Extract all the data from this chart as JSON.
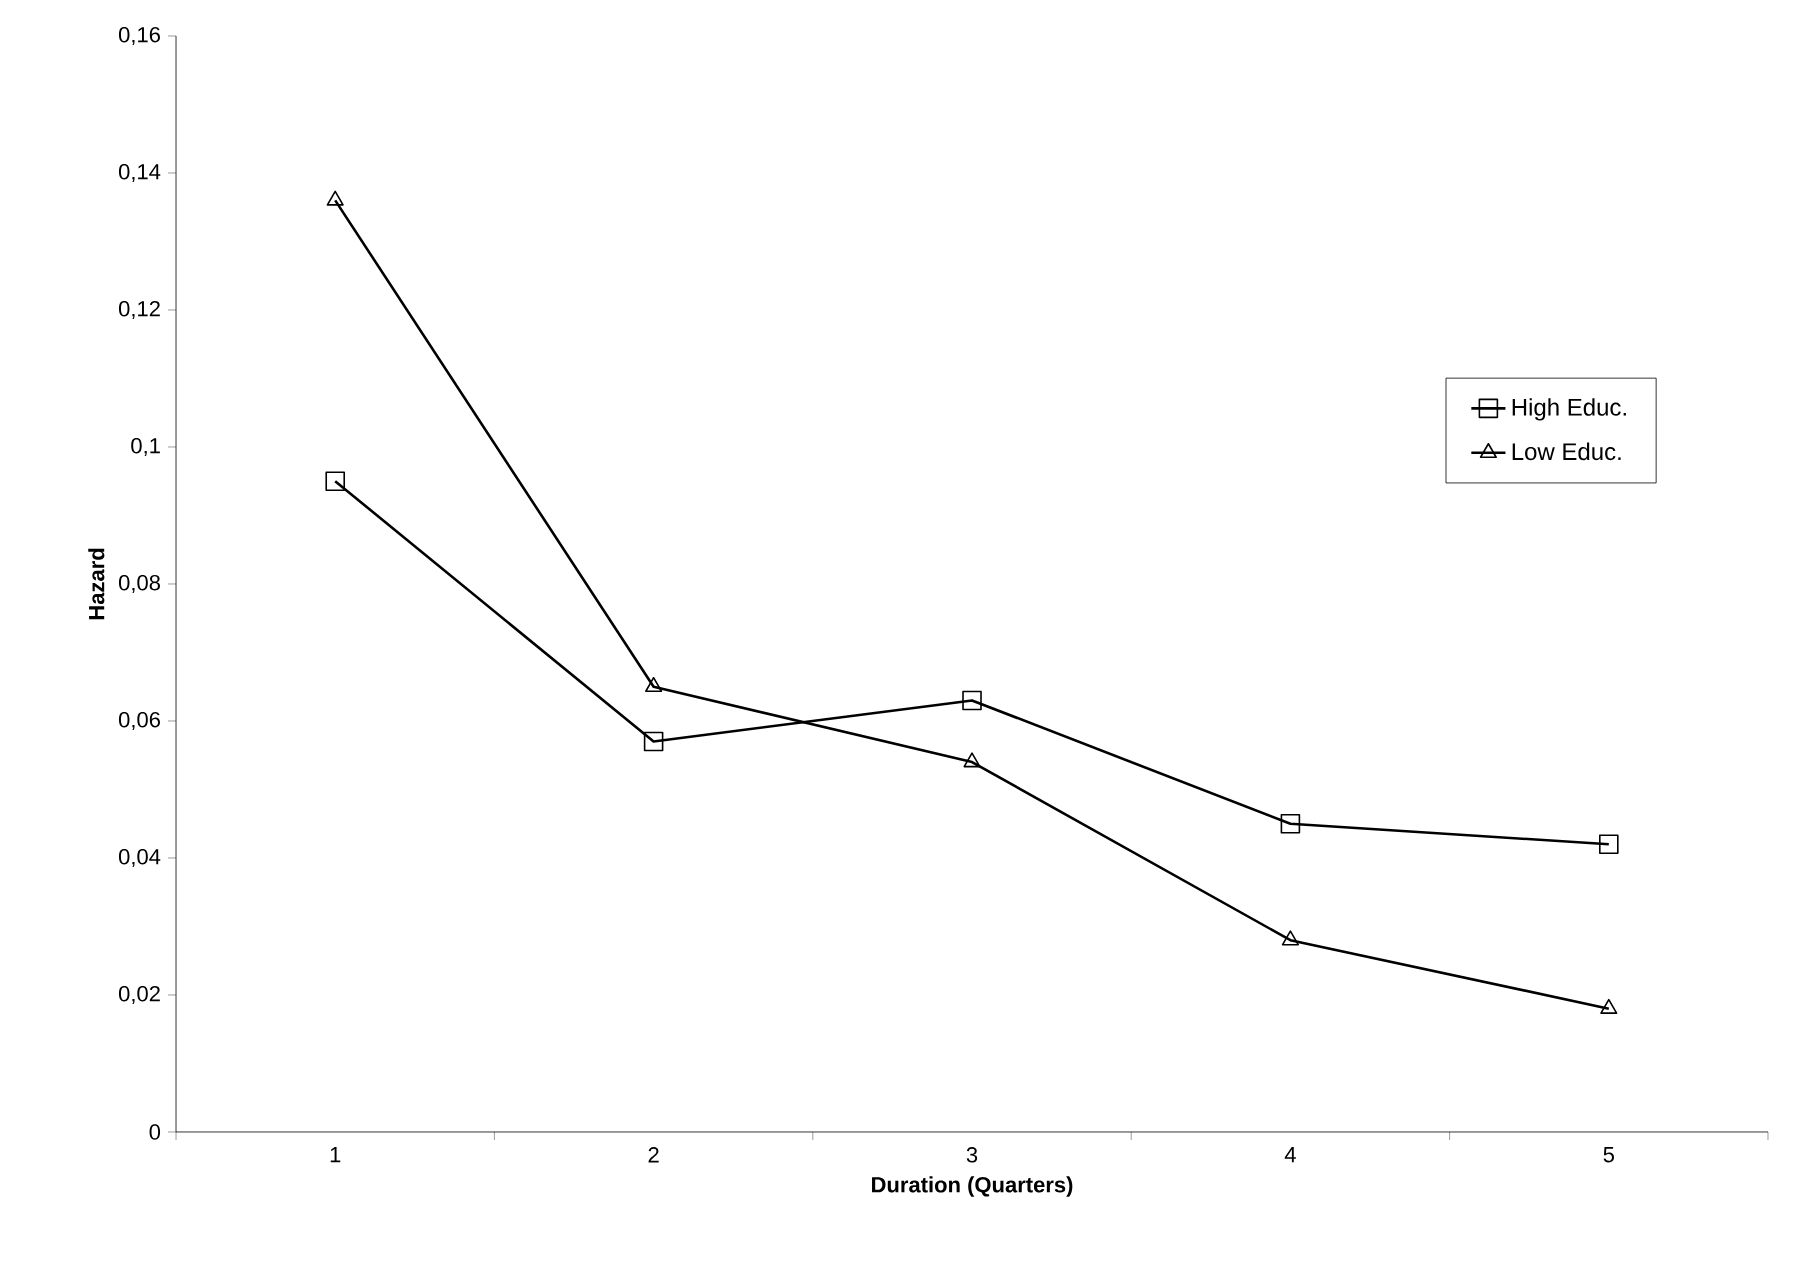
{
  "chart_data": {
    "type": "line",
    "xlabel": "Duration (Quarters)",
    "ylabel": "Hazard",
    "categories": [
      "1",
      "2",
      "3",
      "4",
      "5"
    ],
    "series": [
      {
        "name": "High Educ.",
        "color": "#000000",
        "marker": "square",
        "values": [
          0.095,
          0.057,
          0.063,
          0.045,
          0.042
        ]
      },
      {
        "name": "Low Educ.",
        "color": "#000000",
        "marker": "triangle",
        "values": [
          0.136,
          0.065,
          0.054,
          0.028,
          0.018
        ]
      }
    ],
    "ylim": [
      0,
      0.16
    ],
    "yticks": [
      {
        "value": 0,
        "label": "0"
      },
      {
        "value": 0.02,
        "label": "0,02"
      },
      {
        "value": 0.04,
        "label": "0,04"
      },
      {
        "value": 0.06,
        "label": "0,06"
      },
      {
        "value": 0.08,
        "label": "0,08"
      },
      {
        "value": 0.1,
        "label": "0,1"
      },
      {
        "value": 0.12,
        "label": "0,12"
      },
      {
        "value": 0.14,
        "label": "0,14"
      },
      {
        "value": 0.16,
        "label": "0,16"
      }
    ],
    "grid": false,
    "legend": "right",
    "line_style": "solid"
  }
}
